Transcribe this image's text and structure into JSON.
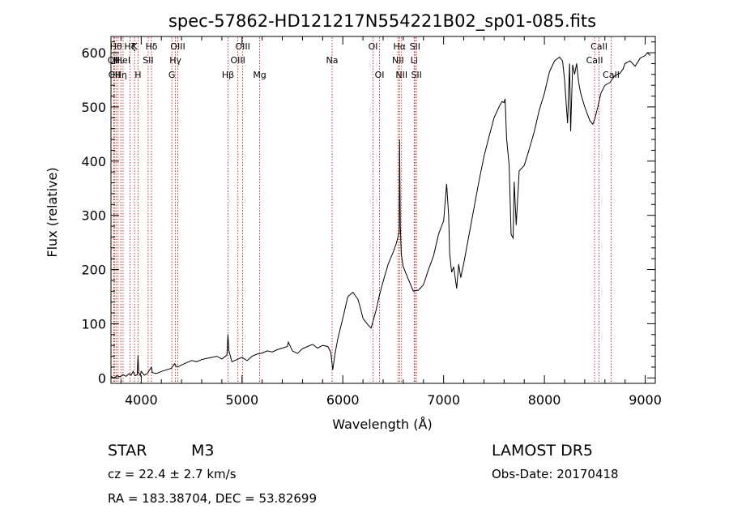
{
  "chart_data": {
    "type": "line",
    "title": "spec-57862-HD121217N554221B02_sp01-085.fits",
    "xlabel": "Wavelength (Å)",
    "ylabel": "Flux (relative)",
    "xlim": [
      3700,
      9100
    ],
    "ylim": [
      -10,
      630
    ],
    "xticks": [
      {
        "value": 4000,
        "label": "4000"
      },
      {
        "value": 5000,
        "label": "5000"
      },
      {
        "value": 6000,
        "label": "6000"
      },
      {
        "value": 7000,
        "label": "7000"
      },
      {
        "value": 8000,
        "label": "8000"
      },
      {
        "value": 9000,
        "label": "9000"
      }
    ],
    "yticks": [
      {
        "value": 0,
        "label": "0"
      },
      {
        "value": 100,
        "label": "100"
      },
      {
        "value": 200,
        "label": "200"
      },
      {
        "value": 300,
        "label": "300"
      },
      {
        "value": 400,
        "label": "400"
      },
      {
        "value": 500,
        "label": "500"
      },
      {
        "value": 600,
        "label": "600"
      }
    ],
    "series": [
      {
        "color": "#000000",
        "x": [
          3700,
          3730,
          3760,
          3790,
          3820,
          3850,
          3880,
          3900,
          3920,
          3940,
          3960,
          3968,
          3975,
          3990,
          4000,
          4030,
          4060,
          4080,
          4102,
          4110,
          4150,
          4200,
          4250,
          4300,
          4330,
          4345,
          4360,
          4400,
          4450,
          4500,
          4550,
          4600,
          4650,
          4700,
          4750,
          4800,
          4850,
          4860,
          4870,
          4900,
          4950,
          5000,
          5050,
          5100,
          5150,
          5200,
          5250,
          5300,
          5350,
          5400,
          5450,
          5460,
          5500,
          5550,
          5600,
          5650,
          5700,
          5750,
          5800,
          5850,
          5880,
          5900,
          5920,
          5950,
          6000,
          6050,
          6100,
          6150,
          6170,
          6200,
          6250,
          6280,
          6300,
          6330,
          6360,
          6400,
          6450,
          6500,
          6530,
          6550,
          6560,
          6563,
          6570,
          6580,
          6600,
          6650,
          6700,
          6750,
          6800,
          6850,
          6900,
          6950,
          7000,
          7030,
          7050,
          7060,
          7080,
          7100,
          7130,
          7150,
          7170,
          7200,
          7250,
          7300,
          7350,
          7400,
          7450,
          7500,
          7550,
          7580,
          7600,
          7610,
          7625,
          7650,
          7670,
          7690,
          7700,
          7720,
          7750,
          7800,
          7850,
          7900,
          7950,
          8000,
          8050,
          8100,
          8150,
          8180,
          8200,
          8230,
          8250,
          8260,
          8280,
          8300,
          8320,
          8340,
          8360,
          8400,
          8450,
          8480,
          8500,
          8530,
          8560,
          8600,
          8650,
          8700,
          8750,
          8780,
          8800,
          8850,
          8900,
          8950,
          9000,
          9020,
          9050
        ],
        "y": [
          3,
          0,
          4,
          2,
          6,
          3,
          8,
          5,
          12,
          4,
          6,
          42,
          10,
          4,
          12,
          5,
          8,
          14,
          20,
          10,
          8,
          12,
          15,
          18,
          26,
          22,
          20,
          24,
          28,
          32,
          30,
          34,
          36,
          38,
          40,
          35,
          42,
          80,
          50,
          30,
          34,
          38,
          32,
          40,
          44,
          46,
          50,
          48,
          52,
          55,
          58,
          66,
          50,
          45,
          54,
          58,
          62,
          55,
          60,
          58,
          48,
          15,
          42,
          72,
          110,
          150,
          158,
          145,
          132,
          110,
          98,
          92,
          105,
          125,
          150,
          178,
          210,
          232,
          248,
          262,
          270,
          440,
          280,
          228,
          205,
          182,
          160,
          162,
          172,
          200,
          225,
          265,
          290,
          358,
          300,
          230,
          195,
          205,
          165,
          210,
          185,
          212,
          262,
          312,
          362,
          408,
          445,
          480,
          500,
          510,
          508,
          515,
          442,
          392,
          265,
          258,
          362,
          282,
          382,
          392,
          422,
          455,
          495,
          525,
          565,
          585,
          592,
          585,
          550,
          470,
          580,
          455,
          578,
          560,
          580,
          545,
          525,
          500,
          475,
          468,
          478,
          500,
          525,
          540,
          545,
          558,
          562,
          570,
          580,
          585,
          575,
          590,
          595,
          600,
          595
        ]
      }
    ],
    "spectral_lines": [
      {
        "wavelength": 3727,
        "label": "OII",
        "row": 1
      },
      {
        "wavelength": 3734,
        "label": "OII",
        "row": 2
      },
      {
        "wavelength": 3750,
        "label": "Hθ",
        "row": 0
      },
      {
        "wavelength": 3771,
        "label": "Hι",
        "row": 1
      },
      {
        "wavelength": 3798,
        "label": "Hη",
        "row": 2
      },
      {
        "wavelength": 3820,
        "label": "HeI",
        "row": 1
      },
      {
        "wavelength": 3889,
        "label": "Hζ",
        "row": 0
      },
      {
        "wavelength": 3934,
        "label": "K",
        "row": 0
      },
      {
        "wavelength": 3968,
        "label": "H",
        "row": 2
      },
      {
        "wavelength": 4069,
        "label": "SII",
        "row": 1
      },
      {
        "wavelength": 4102,
        "label": "Hδ",
        "row": 0
      },
      {
        "wavelength": 4304,
        "label": "G",
        "row": 2
      },
      {
        "wavelength": 4340,
        "label": "Hγ",
        "row": 1
      },
      {
        "wavelength": 4363,
        "label": "OIII",
        "row": 0
      },
      {
        "wavelength": 4861,
        "label": "Hβ",
        "row": 2
      },
      {
        "wavelength": 4959,
        "label": "OIII",
        "row": 1
      },
      {
        "wavelength": 5007,
        "label": "OIII",
        "row": 0
      },
      {
        "wavelength": 5175,
        "label": "Mg",
        "row": 2
      },
      {
        "wavelength": 5894,
        "label": "Na",
        "row": 1
      },
      {
        "wavelength": 6300,
        "label": "OI",
        "row": 0
      },
      {
        "wavelength": 6364,
        "label": "OI",
        "row": 2
      },
      {
        "wavelength": 6548,
        "label": "NII",
        "row": 1
      },
      {
        "wavelength": 6563,
        "label": "Hα",
        "row": 0
      },
      {
        "wavelength": 6583,
        "label": "NII",
        "row": 2
      },
      {
        "wavelength": 6708,
        "label": "Li",
        "row": 1
      },
      {
        "wavelength": 6716,
        "label": "SII",
        "row": 0
      },
      {
        "wavelength": 6731,
        "label": "SII",
        "row": 2
      },
      {
        "wavelength": 8498,
        "label": "CaII",
        "row": 1
      },
      {
        "wavelength": 8542,
        "label": "CaII",
        "row": 0
      },
      {
        "wavelength": 8662,
        "label": "CaII",
        "row": 2
      }
    ]
  },
  "info": {
    "class": "STAR",
    "subclass": "M3",
    "survey": "LAMOST DR5",
    "redshift": "cz = 22.4 ± 2.7 km/s",
    "obs_date": "Obs-Date: 20170418",
    "coords": "RA = 183.38704, DEC =  53.82699"
  }
}
